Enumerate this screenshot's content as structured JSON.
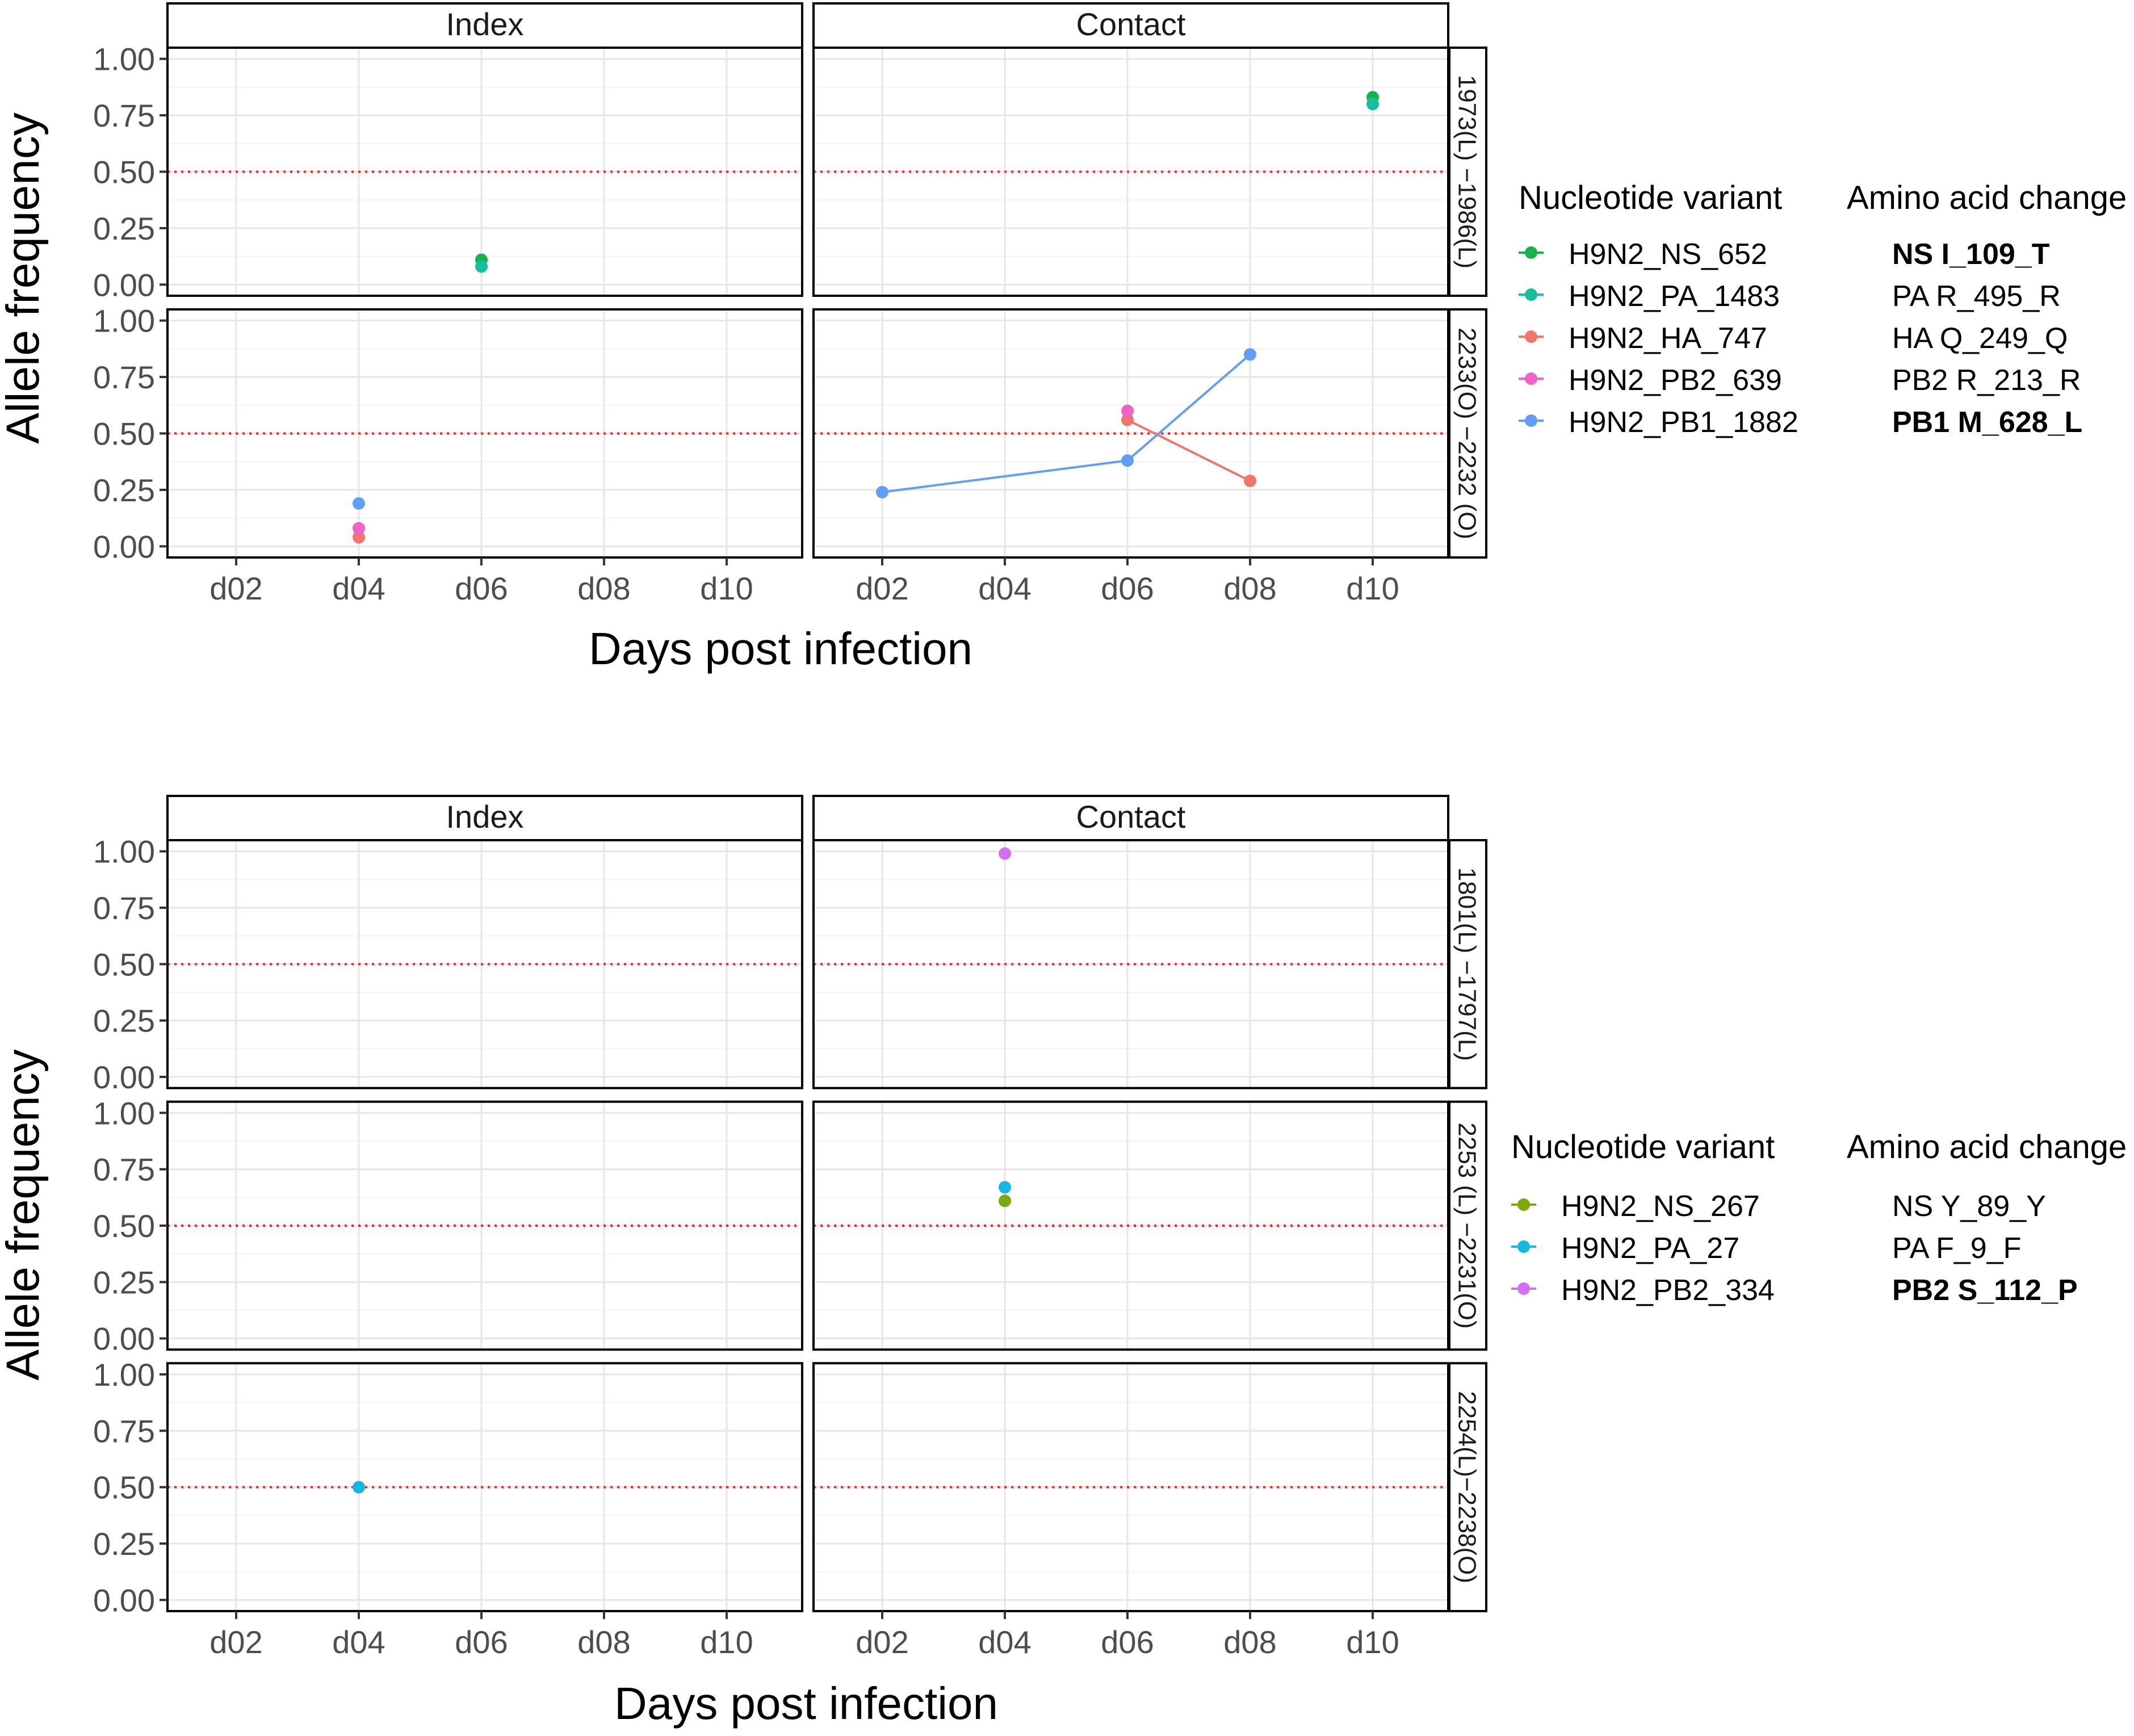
{
  "figure_top": {
    "ylabel": "Allele frequency",
    "xlabel": "Days post infection"
  },
  "figure_bottom": {
    "ylabel": "Allele frequency",
    "xlabel": "Days post infection"
  },
  "legend_top": {
    "variant_title": "Nucleotide variant",
    "aa_title": "Amino acid change",
    "items": [
      {
        "variant": "H9N2_NS_652",
        "aa": "NS I_109_T",
        "bold": true,
        "color": "#17b34a"
      },
      {
        "variant": "H9N2_PA_1483",
        "aa": "PA R_495_R",
        "bold": false,
        "color": "#16bfa0"
      },
      {
        "variant": "H9N2_HA_747",
        "aa": "HA Q_249_Q",
        "bold": false,
        "color": "#f0766b"
      },
      {
        "variant": "H9N2_PB2_639",
        "aa": "PB2 R_213_R",
        "bold": false,
        "color": "#f062c6"
      },
      {
        "variant": "H9N2_PB1_1882",
        "aa": "PB1 M_628_L",
        "bold": true,
        "color": "#629ef7"
      }
    ]
  },
  "legend_bottom": {
    "variant_title": "Nucleotide variant",
    "aa_title": "Amino acid change",
    "items": [
      {
        "variant": "H9N2_NS_267",
        "aa": "NS Y_89_Y",
        "bold": false,
        "color": "#7ea70c"
      },
      {
        "variant": "H9N2_PA_27",
        "aa": "PA F_9_F",
        "bold": false,
        "color": "#12b8e1"
      },
      {
        "variant": "H9N2_PB2_334",
        "aa": "PB2 S_112_P",
        "bold": true,
        "color": "#d36ff5"
      }
    ]
  },
  "chart_data": [
    {
      "type": "scatter",
      "facet_columns": [
        "Index",
        "Contact"
      ],
      "facet_rows": [
        "1973(L) −1986(L)",
        "2233(O) −2232 (O)"
      ],
      "x_categories": [
        "d02",
        "d04",
        "d06",
        "d08",
        "d10"
      ],
      "y_ticks": [
        "0.00",
        "0.25",
        "0.50",
        "0.75",
        "1.00"
      ],
      "ylim": [
        0,
        1
      ],
      "reference_line": 0.5,
      "reference_line_color": "#ff2222",
      "grid": true,
      "legend_position": "right",
      "xlabel": "Days post infection",
      "ylabel": "Allele frequency",
      "series": [
        {
          "name": "H9N2_NS_652",
          "color": "#17b34a",
          "points": [
            {
              "row": 0,
              "col": "Index",
              "x": "d06",
              "y": 0.11
            },
            {
              "row": 0,
              "col": "Contact",
              "x": "d10",
              "y": 0.83
            }
          ]
        },
        {
          "name": "H9N2_PA_1483",
          "color": "#16bfa0",
          "points": [
            {
              "row": 0,
              "col": "Index",
              "x": "d06",
              "y": 0.08
            },
            {
              "row": 0,
              "col": "Contact",
              "x": "d10",
              "y": 0.8
            }
          ]
        },
        {
          "name": "H9N2_HA_747",
          "color": "#f0766b",
          "points": [
            {
              "row": 1,
              "col": "Index",
              "x": "d04",
              "y": 0.04
            },
            {
              "row": 1,
              "col": "Contact",
              "x": "d06",
              "y": 0.56
            },
            {
              "row": 1,
              "col": "Contact",
              "x": "d08",
              "y": 0.29
            }
          ]
        },
        {
          "name": "H9N2_PB2_639",
          "color": "#f062c6",
          "points": [
            {
              "row": 1,
              "col": "Index",
              "x": "d04",
              "y": 0.08
            },
            {
              "row": 1,
              "col": "Contact",
              "x": "d06",
              "y": 0.6
            }
          ]
        },
        {
          "name": "H9N2_PB1_1882",
          "color": "#629ef7",
          "points": [
            {
              "row": 1,
              "col": "Index",
              "x": "d04",
              "y": 0.19
            },
            {
              "row": 1,
              "col": "Contact",
              "x": "d02",
              "y": 0.24
            },
            {
              "row": 1,
              "col": "Contact",
              "x": "d06",
              "y": 0.38
            },
            {
              "row": 1,
              "col": "Contact",
              "x": "d08",
              "y": 0.85
            }
          ]
        }
      ]
    },
    {
      "type": "scatter",
      "facet_columns": [
        "Index",
        "Contact"
      ],
      "facet_rows": [
        "1801(L) −1797(L)",
        "2253 (L) −2231(O)",
        "2254(L)−2238(O)"
      ],
      "x_categories": [
        "d02",
        "d04",
        "d06",
        "d08",
        "d10"
      ],
      "y_ticks": [
        "0.00",
        "0.25",
        "0.50",
        "0.75",
        "1.00"
      ],
      "ylim": [
        0,
        1
      ],
      "reference_line": 0.5,
      "reference_line_color": "#ff2222",
      "grid": true,
      "legend_position": "right",
      "xlabel": "Days post infection",
      "ylabel": "Allele frequency",
      "series": [
        {
          "name": "H9N2_NS_267",
          "color": "#7ea70c",
          "points": [
            {
              "row": 1,
              "col": "Contact",
              "x": "d04",
              "y": 0.61
            }
          ]
        },
        {
          "name": "H9N2_PA_27",
          "color": "#12b8e1",
          "points": [
            {
              "row": 1,
              "col": "Contact",
              "x": "d04",
              "y": 0.67
            },
            {
              "row": 2,
              "col": "Index",
              "x": "d04",
              "y": 0.5
            }
          ]
        },
        {
          "name": "H9N2_PB2_334",
          "color": "#d36ff5",
          "points": [
            {
              "row": 0,
              "col": "Contact",
              "x": "d04",
              "y": 0.99
            }
          ]
        }
      ]
    }
  ]
}
